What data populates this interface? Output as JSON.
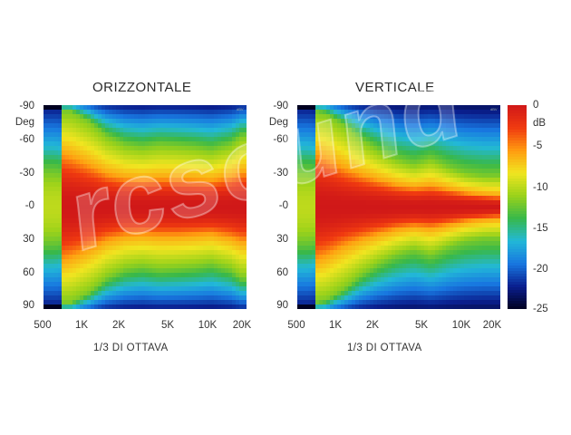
{
  "watermark": "rcsound",
  "chart_data": [
    {
      "type": "heatmap",
      "title": "ORIZZONTALE",
      "xlabel": "1/3 DI OTTAVA",
      "ylabel": "Deg",
      "x_ticks": [
        "500",
        "1K",
        "2K",
        "5K",
        "10K",
        "20K"
      ],
      "y_ticks": [
        "-90",
        "-60",
        "-30",
        "-0",
        "30",
        "60",
        "90"
      ],
      "ylim": [
        -90,
        90
      ],
      "coverage_profile": {
        "freq_hz": [
          500,
          700,
          1000,
          1400,
          2000,
          2800,
          4000,
          5600,
          8000,
          11000,
          16000,
          20000
        ],
        "beamwidth_minus6db_deg": [
          100,
          90,
          75,
          60,
          52,
          50,
          52,
          52,
          50,
          48,
          55,
          62
        ],
        "beamwidth_minus12db_deg": [
          170,
          168,
          150,
          125,
          110,
          105,
          110,
          108,
          105,
          100,
          110,
          125
        ]
      }
    },
    {
      "type": "heatmap",
      "title": "VERTICALE",
      "xlabel": "1/3 DI OTTAVA",
      "ylabel": "Deg",
      "x_ticks": [
        "500",
        "1K",
        "2K",
        "5K",
        "10K",
        "20K"
      ],
      "y_ticks": [
        "-90",
        "-60",
        "-30",
        "-0",
        "30",
        "60",
        "90"
      ],
      "ylim": [
        -90,
        90
      ],
      "coverage_profile": {
        "freq_hz": [
          500,
          700,
          1000,
          1400,
          2000,
          2800,
          4000,
          5600,
          8000,
          11000,
          16000,
          20000
        ],
        "beamwidth_minus6db_deg": [
          100,
          88,
          70,
          58,
          48,
          40,
          35,
          38,
          32,
          26,
          22,
          20
        ],
        "beamwidth_minus12db_deg": [
          170,
          165,
          145,
          120,
          100,
          85,
          75,
          85,
          70,
          60,
          55,
          55
        ]
      }
    }
  ],
  "colorbar": {
    "unit": "dB",
    "ticks": [
      "0",
      "-5",
      "-10",
      "-15",
      "-20",
      "-25"
    ],
    "range": [
      -25,
      0
    ],
    "colors": [
      "#000020",
      "#0a1f8f",
      "#1877e0",
      "#22b8d8",
      "#38b84a",
      "#9bd21a",
      "#f0e520",
      "#ff9a10",
      "#f03a10",
      "#d01818"
    ]
  }
}
